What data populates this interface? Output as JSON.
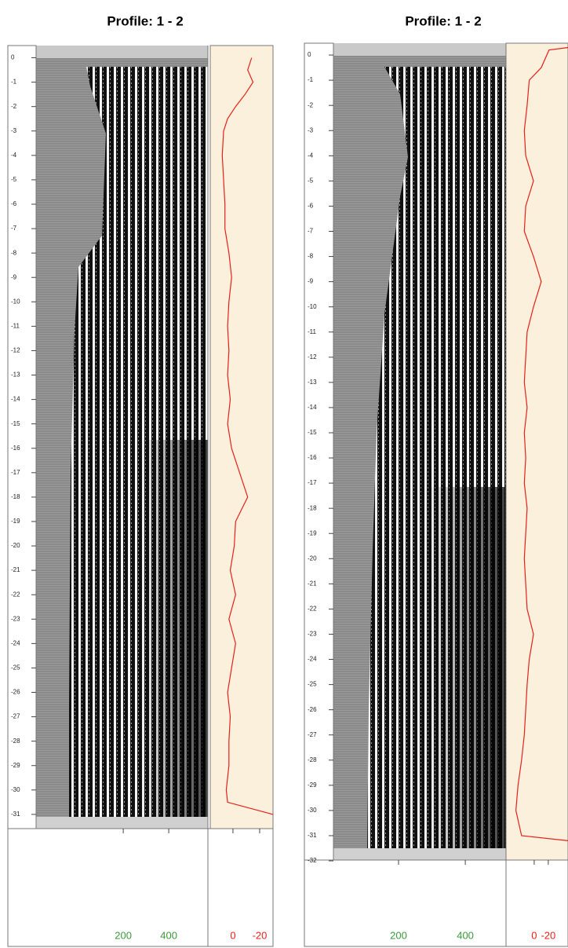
{
  "chart_data": [
    {
      "type": "line",
      "title": "Profile: 1 - 2",
      "ylim": [
        0.5,
        -31.1
      ],
      "yticks": [
        0,
        -1,
        -2,
        -3,
        -4,
        -5,
        -6,
        -7,
        -8,
        -9,
        -10,
        -11,
        -12,
        -13,
        -14,
        -15,
        -16,
        -17,
        -18,
        -19,
        -20,
        -21,
        -22,
        -23,
        -24,
        -25,
        -26,
        -27,
        -28,
        -29,
        -30,
        -31
      ],
      "xlim": [
        -183,
        572
      ],
      "xticks": [
        200,
        400
      ],
      "xtick_color": "#3a9a3a",
      "trace": {
        "xlim": [
          17,
          -30
        ],
        "xticks": [
          0,
          -20
        ],
        "color": "#e8201a",
        "depth": [
          0,
          -0.5,
          -1,
          -1.5,
          -2,
          -2.5,
          -3,
          -4,
          -5,
          -6,
          -7,
          -8,
          -9,
          -10,
          -11,
          -12,
          -13,
          -14,
          -15,
          -16,
          -17,
          -18,
          -19,
          -20,
          -21,
          -22,
          -23,
          -24,
          -25,
          -26,
          -27,
          -28,
          -29,
          -30,
          -30.5,
          -31
        ],
        "values": [
          -14,
          -11,
          -15,
          -9,
          -2,
          4,
          7,
          8,
          7,
          6,
          6,
          3,
          1,
          3,
          4,
          3,
          4,
          2,
          4,
          1,
          -5,
          -11,
          -2,
          -1,
          2,
          -2,
          3,
          -2,
          1,
          4,
          2,
          3,
          3,
          5,
          4,
          -30
        ]
      }
    },
    {
      "type": "line",
      "title": "Profile: 1 - 2",
      "ylim": [
        0.47,
        -31.5
      ],
      "yticks": [
        0,
        -1,
        -2,
        -3,
        -4,
        -5,
        -6,
        -7,
        -8,
        -9,
        -10,
        -11,
        -12,
        -13,
        -14,
        -15,
        -16,
        -17,
        -18,
        -19,
        -20,
        -21,
        -22,
        -23,
        -24,
        -25,
        -26,
        -27,
        -28,
        -29,
        -30,
        -31,
        -32
      ],
      "xlim": [
        5,
        522
      ],
      "xticks": [
        200,
        400
      ],
      "xtick_color": "#3a9a3a",
      "trace": {
        "xlim": [
          40,
          -48
        ],
        "xticks": [
          0,
          -20
        ],
        "color": "#e8201a",
        "depth": [
          0.3,
          0.2,
          -0.5,
          -1,
          -2,
          -3,
          -4,
          -5,
          -6,
          -7,
          -8,
          -9,
          -10,
          -11,
          -12,
          -13,
          -14,
          -15,
          -16,
          -17,
          -18,
          -19,
          -20,
          -21,
          -22,
          -23,
          -24,
          -25,
          -26,
          -27,
          -28,
          -29,
          -30,
          -31,
          -31.2
        ],
        "values": [
          -48,
          -21,
          -10,
          7,
          10,
          14,
          12,
          1,
          12,
          14,
          1,
          -10,
          1,
          10,
          12,
          14,
          10,
          14,
          12,
          14,
          10,
          12,
          14,
          12,
          10,
          1,
          7,
          10,
          12,
          14,
          18,
          23,
          26,
          18,
          -48
        ]
      }
    }
  ]
}
